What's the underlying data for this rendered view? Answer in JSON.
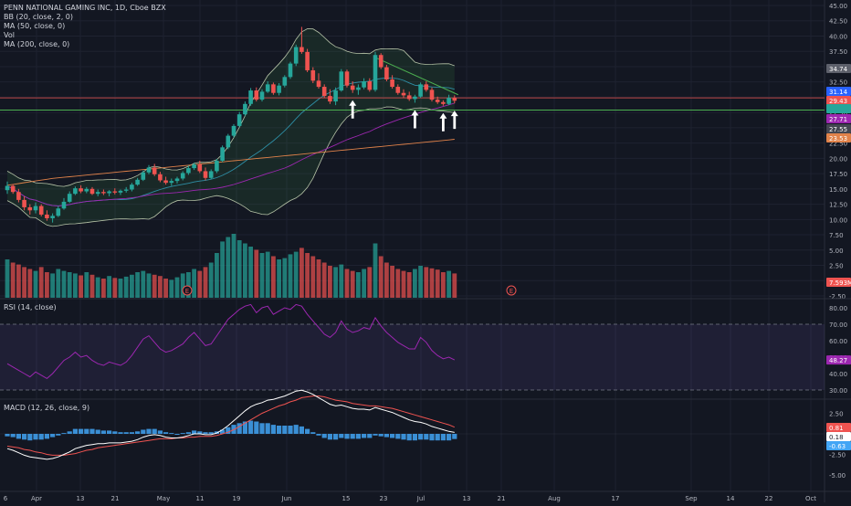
{
  "header": {
    "title": "PENN NATIONAL GAMING INC, 1D, Cboe BZX",
    "indicators": [
      "BB (20, close, 2, 0)",
      "MA (50, close, 0)",
      "Vol",
      "MA (200, close, 0)"
    ]
  },
  "colors": {
    "background": "#131722",
    "grid": "#1e2230",
    "up": "#26a69a",
    "down": "#ef5350",
    "bb": "#b7c4a8",
    "bb_fill": "rgba(76,175,80,0.12)",
    "ma20": "#2e8fa6",
    "ma50": "#9c27b0",
    "ma200": "#e0824a",
    "support": "#4caf50",
    "resistance": "#ef5350",
    "trend": "#4caf50",
    "rsi": "#9c27b0",
    "macd": "#ffffff",
    "signal": "#ef5350",
    "hist": "#42a5f5"
  },
  "price_axis": {
    "ticks": [
      "45.00",
      "42.50",
      "40.00",
      "37.50",
      "35.00",
      "32.50",
      "30.00",
      "27.50",
      "25.00",
      "22.50",
      "20.00",
      "17.50",
      "15.00",
      "12.50",
      "10.00",
      "7.50",
      "5.00",
      "2.50",
      "0.00",
      "-2.50"
    ],
    "badges": [
      {
        "label": "34.74",
        "color": "#5d606b"
      },
      {
        "label": "31.14",
        "color": "#2962ff"
      },
      {
        "label": "29.43",
        "color": "#ef5350"
      },
      {
        "label": "",
        "color": "#26a69a"
      },
      {
        "label": "27.71",
        "color": "#9c27b0"
      },
      {
        "label": "27.55",
        "color": "#434651"
      },
      {
        "label": "23.53",
        "color": "#e0824a"
      },
      {
        "label": "7.593M",
        "color": "#ef5350"
      }
    ]
  },
  "x_axis": {
    "labels": [
      "6",
      "Apr",
      "13",
      "21",
      "May",
      "11",
      "19",
      "Jun",
      "15",
      "23",
      "Jul",
      "13",
      "21",
      "Aug",
      "17",
      "Sep",
      "14",
      "22",
      "Oct"
    ]
  },
  "earnings_markers": [
    "E",
    "E"
  ],
  "annotations": {
    "arrows": 4
  },
  "rsi": {
    "label": "RSI (14, close)",
    "ticks": [
      "80.00",
      "70.00",
      "60.00",
      "50.00",
      "40.00",
      "30.00"
    ],
    "current": "48.27",
    "band": [
      30,
      70
    ]
  },
  "macd": {
    "label": "MACD (12, 26, close, 9)",
    "ticks": [
      "2.50",
      "0.00",
      "-2.50",
      "-5.00"
    ],
    "badges": [
      {
        "label": "0.81",
        "color": "#ef5350"
      },
      {
        "label": "0.18",
        "color": "#ffffff"
      },
      {
        "label": "-0.63",
        "color": "#42a5f5"
      }
    ]
  },
  "chart_data": {
    "type": "candlestick",
    "title": "PENN NATIONAL GAMING INC, 1D, Cboe BZX",
    "ylim": [
      -2.5,
      45
    ],
    "support_level": 27.9,
    "resistance_level": 29.9,
    "candles": [
      [
        14.8,
        16.2,
        14.2,
        15.5
      ],
      [
        15.5,
        15.8,
        14.2,
        14.5
      ],
      [
        14.5,
        15.0,
        12.8,
        13.2
      ],
      [
        13.2,
        13.8,
        11.5,
        12.0
      ],
      [
        12.0,
        12.5,
        10.8,
        11.5
      ],
      [
        11.5,
        12.8,
        11.0,
        12.2
      ],
      [
        12.2,
        12.5,
        10.5,
        10.8
      ],
      [
        10.8,
        11.5,
        9.8,
        10.2
      ],
      [
        10.2,
        11.0,
        9.5,
        10.6
      ],
      [
        10.6,
        12.2,
        10.4,
        11.8
      ],
      [
        11.8,
        13.5,
        11.6,
        12.9
      ],
      [
        12.9,
        14.6,
        12.7,
        14.2
      ],
      [
        14.2,
        15.4,
        14.0,
        15.1
      ],
      [
        15.1,
        15.6,
        14.3,
        14.6
      ],
      [
        14.6,
        15.3,
        14.3,
        15.0
      ],
      [
        15.0,
        15.3,
        14.0,
        14.2
      ],
      [
        14.2,
        14.9,
        13.8,
        14.5
      ],
      [
        14.5,
        14.9,
        14.0,
        14.3
      ],
      [
        14.3,
        14.8,
        13.8,
        14.6
      ],
      [
        14.6,
        15.1,
        14.1,
        14.4
      ],
      [
        14.4,
        14.9,
        14.0,
        14.7
      ],
      [
        14.7,
        15.3,
        14.4,
        14.9
      ],
      [
        14.9,
        16.0,
        14.6,
        15.7
      ],
      [
        15.7,
        16.8,
        15.5,
        16.5
      ],
      [
        16.5,
        18.0,
        16.3,
        17.7
      ],
      [
        17.7,
        18.9,
        17.4,
        18.5
      ],
      [
        18.5,
        19.1,
        17.1,
        17.4
      ],
      [
        17.4,
        17.8,
        16.1,
        16.4
      ],
      [
        16.4,
        17.0,
        15.7,
        16.0
      ],
      [
        16.0,
        16.7,
        15.5,
        16.3
      ],
      [
        16.3,
        17.0,
        15.9,
        16.7
      ],
      [
        16.7,
        17.9,
        16.4,
        17.6
      ],
      [
        17.6,
        18.8,
        17.3,
        18.4
      ],
      [
        18.4,
        19.3,
        18.1,
        19.0
      ],
      [
        19.0,
        19.6,
        17.6,
        17.9
      ],
      [
        17.9,
        18.5,
        16.4,
        16.8
      ],
      [
        16.8,
        18.2,
        16.6,
        17.9
      ],
      [
        17.9,
        19.9,
        17.6,
        19.6
      ],
      [
        19.6,
        22.1,
        19.4,
        21.8
      ],
      [
        21.8,
        24.0,
        21.5,
        23.7
      ],
      [
        23.7,
        25.6,
        23.4,
        25.3
      ],
      [
        25.3,
        27.6,
        25.1,
        27.2
      ],
      [
        27.2,
        29.3,
        26.9,
        28.9
      ],
      [
        28.9,
        31.5,
        28.6,
        31.1
      ],
      [
        31.1,
        31.6,
        29.3,
        29.6
      ],
      [
        29.6,
        31.3,
        29.3,
        30.9
      ],
      [
        30.9,
        32.6,
        30.7,
        32.1
      ],
      [
        32.1,
        32.4,
        30.4,
        30.7
      ],
      [
        30.7,
        32.3,
        30.3,
        31.9
      ],
      [
        31.9,
        33.6,
        31.6,
        33.3
      ],
      [
        33.3,
        35.8,
        33.0,
        35.5
      ],
      [
        35.5,
        38.6,
        35.1,
        38.2
      ],
      [
        38.2,
        41.5,
        37.1,
        37.4
      ],
      [
        37.4,
        37.9,
        34.1,
        34.4
      ],
      [
        34.4,
        34.9,
        32.3,
        32.7
      ],
      [
        32.7,
        33.9,
        31.4,
        31.7
      ],
      [
        31.7,
        32.1,
        29.9,
        30.2
      ],
      [
        30.2,
        31.3,
        28.9,
        29.3
      ],
      [
        29.3,
        31.6,
        28.7,
        31.1
      ],
      [
        31.1,
        34.6,
        30.9,
        34.2
      ],
      [
        34.2,
        34.5,
        31.6,
        31.9
      ],
      [
        31.9,
        32.6,
        30.7,
        31.2
      ],
      [
        31.2,
        32.1,
        30.4,
        31.6
      ],
      [
        31.6,
        33.1,
        31.3,
        32.6
      ],
      [
        32.6,
        33.1,
        30.9,
        31.2
      ],
      [
        31.2,
        37.4,
        30.9,
        36.9
      ],
      [
        36.9,
        37.2,
        34.6,
        34.9
      ],
      [
        34.9,
        35.3,
        32.6,
        32.9
      ],
      [
        32.9,
        33.6,
        31.4,
        31.7
      ],
      [
        31.7,
        32.1,
        30.4,
        30.7
      ],
      [
        30.7,
        31.3,
        29.9,
        30.3
      ],
      [
        30.3,
        30.9,
        29.4,
        29.7
      ],
      [
        29.7,
        30.4,
        29.1,
        30.1
      ],
      [
        30.1,
        32.4,
        29.9,
        32.1
      ],
      [
        32.1,
        32.6,
        30.9,
        31.2
      ],
      [
        31.2,
        31.6,
        29.3,
        29.6
      ],
      [
        29.6,
        30.1,
        28.9,
        29.2
      ],
      [
        29.2,
        29.5,
        28.6,
        28.9
      ],
      [
        28.9,
        30.4,
        28.7,
        29.9
      ],
      [
        29.9,
        30.3,
        29.0,
        29.43
      ]
    ],
    "volume_pct": [
      60,
      55,
      52,
      48,
      45,
      42,
      48,
      40,
      38,
      45,
      42,
      40,
      38,
      35,
      40,
      36,
      32,
      30,
      34,
      31,
      30,
      33,
      36,
      40,
      42,
      38,
      36,
      34,
      30,
      28,
      32,
      38,
      40,
      45,
      42,
      48,
      55,
      70,
      88,
      95,
      100,
      90,
      85,
      80,
      75,
      70,
      72,
      65,
      60,
      62,
      68,
      72,
      78,
      70,
      65,
      60,
      55,
      50,
      48,
      52,
      45,
      42,
      40,
      45,
      48,
      85,
      65,
      55,
      50,
      45,
      42,
      40,
      45,
      50,
      48,
      46,
      44,
      40,
      42,
      38
    ],
    "rsi": [
      46,
      44,
      42,
      40,
      38,
      41,
      39,
      37,
      40,
      44,
      48,
      50,
      53,
      50,
      51,
      48,
      46,
      45,
      47,
      46,
      45,
      47,
      51,
      56,
      61,
      63,
      59,
      55,
      53,
      54,
      56,
      58,
      62,
      65,
      61,
      57,
      58,
      63,
      68,
      73,
      76,
      79,
      81,
      82,
      77,
      80,
      81,
      76,
      78,
      80,
      79,
      82,
      81,
      76,
      72,
      68,
      64,
      62,
      65,
      72,
      67,
      65,
      66,
      68,
      67,
      74,
      69,
      65,
      62,
      59,
      57,
      55,
      55,
      62,
      59,
      54,
      51,
      49,
      50,
      48.27
    ],
    "macd": [
      -1.8,
      -2.0,
      -2.3,
      -2.6,
      -2.8,
      -2.9,
      -3.0,
      -3.1,
      -3.0,
      -2.8,
      -2.5,
      -2.2,
      -1.8,
      -1.6,
      -1.4,
      -1.3,
      -1.2,
      -1.2,
      -1.1,
      -1.1,
      -1.1,
      -1.0,
      -0.9,
      -0.7,
      -0.4,
      -0.2,
      -0.1,
      -0.2,
      -0.4,
      -0.5,
      -0.5,
      -0.4,
      -0.2,
      0.0,
      0.0,
      -0.1,
      -0.1,
      0.1,
      0.5,
      1.0,
      1.6,
      2.2,
      2.8,
      3.3,
      3.6,
      3.8,
      4.1,
      4.2,
      4.4,
      4.6,
      4.9,
      5.2,
      5.3,
      5.1,
      4.8,
      4.4,
      4.0,
      3.6,
      3.4,
      3.5,
      3.3,
      3.1,
      3.0,
      3.0,
      2.9,
      3.2,
      3.0,
      2.8,
      2.6,
      2.3,
      2.0,
      1.7,
      1.5,
      1.4,
      1.2,
      0.9,
      0.7,
      0.5,
      0.3,
      0.18
    ],
    "macd_signal": [
      -1.5,
      -1.6,
      -1.7,
      -1.9,
      -2.0,
      -2.2,
      -2.3,
      -2.5,
      -2.6,
      -2.6,
      -2.6,
      -2.5,
      -2.4,
      -2.2,
      -2.0,
      -1.9,
      -1.7,
      -1.6,
      -1.5,
      -1.4,
      -1.3,
      -1.2,
      -1.1,
      -1.0,
      -0.9,
      -0.8,
      -0.7,
      -0.6,
      -0.6,
      -0.6,
      -0.5,
      -0.5,
      -0.4,
      -0.4,
      -0.3,
      -0.3,
      -0.3,
      -0.2,
      0.0,
      0.2,
      0.5,
      0.9,
      1.3,
      1.7,
      2.1,
      2.5,
      2.8,
      3.1,
      3.4,
      3.6,
      3.9,
      4.1,
      4.4,
      4.5,
      4.6,
      4.6,
      4.5,
      4.3,
      4.1,
      4.0,
      3.9,
      3.7,
      3.6,
      3.5,
      3.4,
      3.4,
      3.3,
      3.2,
      3.1,
      2.9,
      2.7,
      2.5,
      2.3,
      2.1,
      1.9,
      1.7,
      1.5,
      1.3,
      1.1,
      0.81
    ]
  }
}
